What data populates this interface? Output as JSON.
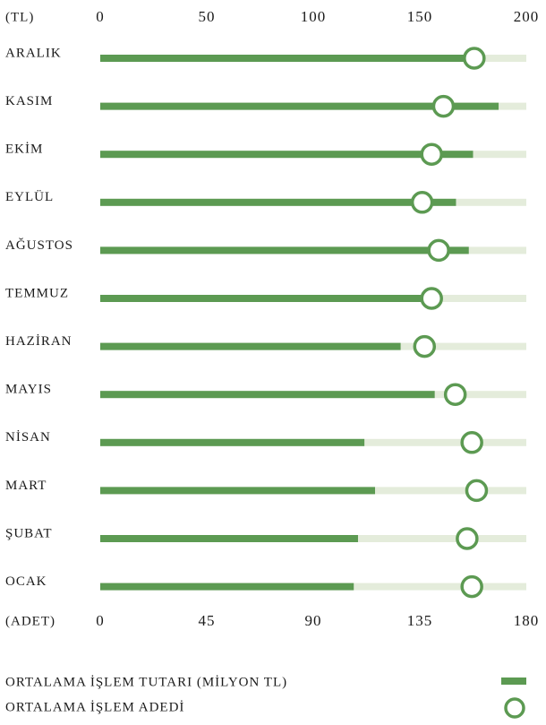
{
  "chart_data": {
    "type": "bar",
    "orientation": "horizontal",
    "xlabel": "(TL)",
    "x2label": "(ADET)",
    "categories": [
      "ARALIK",
      "KASIM",
      "EKİM",
      "EYLÜL",
      "AĞUSTOS",
      "TEMMUZ",
      "HAZİRAN",
      "MAYIS",
      "NİSAN",
      "MART",
      "ŞUBAT",
      "OCAK"
    ],
    "series": [
      {
        "name": "ORTALAMA İŞLEM TUTARI (MİLYON TL)",
        "color": "#5c9a52",
        "values": [
          176,
          187,
          175,
          167,
          173,
          154,
          141,
          157,
          124,
          129,
          121,
          119
        ]
      },
      {
        "name": "ORTALAMA İŞLEM ADEDİ",
        "color": "#5c9a52",
        "axis": "x2",
        "values": [
          158,
          145,
          140,
          136,
          143,
          140,
          137,
          150,
          157,
          159,
          155,
          157
        ]
      }
    ],
    "xlim": [
      0,
      200
    ],
    "xticks": [
      0,
      50,
      100,
      150,
      200
    ],
    "x2lim": [
      0,
      180
    ],
    "x2ticks": [
      0,
      45,
      90,
      135,
      180
    ],
    "track_color": "#e4ecdb"
  }
}
